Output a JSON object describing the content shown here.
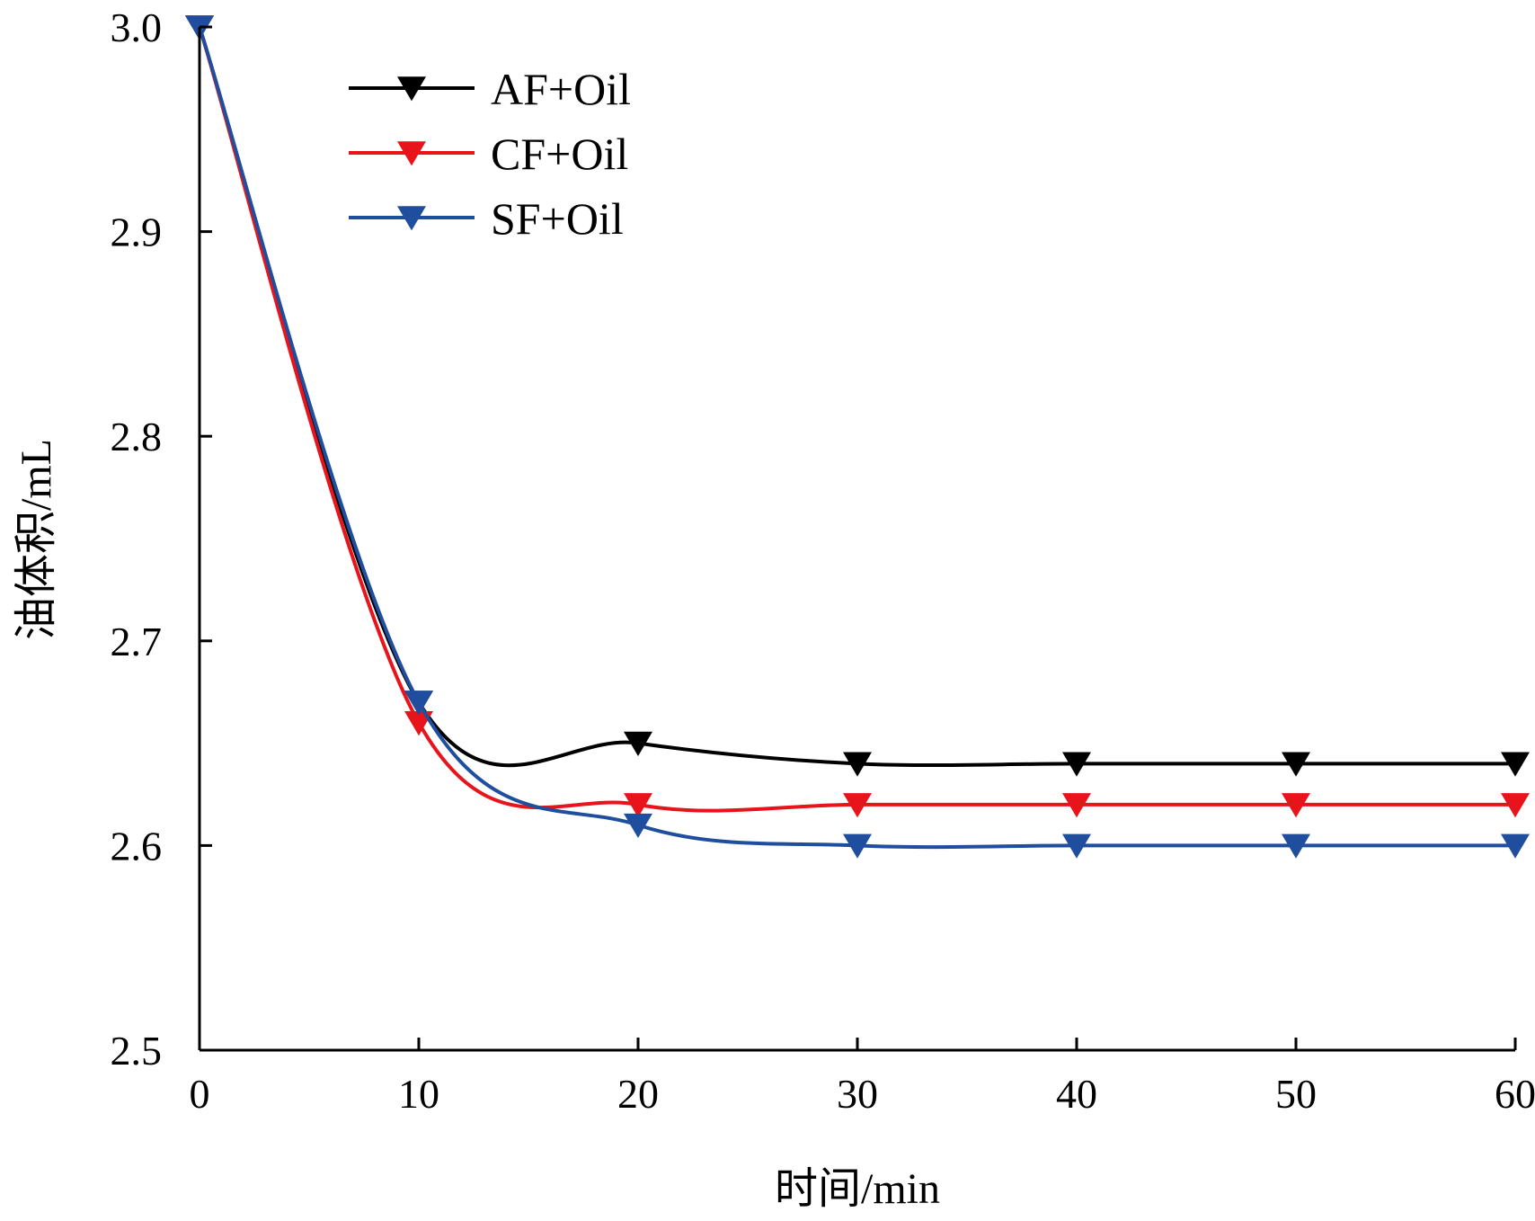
{
  "chart_data": {
    "type": "line",
    "xlabel": "时间/min",
    "ylabel": "油体积/mL",
    "xlim": [
      0,
      60
    ],
    "ylim": [
      2.5,
      3.0
    ],
    "xticks": [
      "0",
      "10",
      "20",
      "30",
      "40",
      "50",
      "60"
    ],
    "yticks": [
      "2.5",
      "2.6",
      "2.7",
      "2.8",
      "2.9",
      "3.0"
    ],
    "grid": false,
    "legend_position": "top-left",
    "x": [
      0,
      10,
      20,
      30,
      40,
      50,
      60
    ],
    "series": [
      {
        "name": "AF+Oil",
        "color": "#000000",
        "marker": "triangle-down",
        "values": [
          3.0,
          2.67,
          2.65,
          2.64,
          2.64,
          2.64,
          2.64
        ]
      },
      {
        "name": "CF+Oil",
        "color": "#e8141b",
        "marker": "triangle-down",
        "values": [
          3.0,
          2.66,
          2.62,
          2.62,
          2.62,
          2.62,
          2.62
        ]
      },
      {
        "name": "SF+Oil",
        "color": "#1f4e9e",
        "marker": "triangle-down",
        "values": [
          3.0,
          2.67,
          2.61,
          2.6,
          2.6,
          2.6,
          2.6
        ]
      }
    ]
  }
}
